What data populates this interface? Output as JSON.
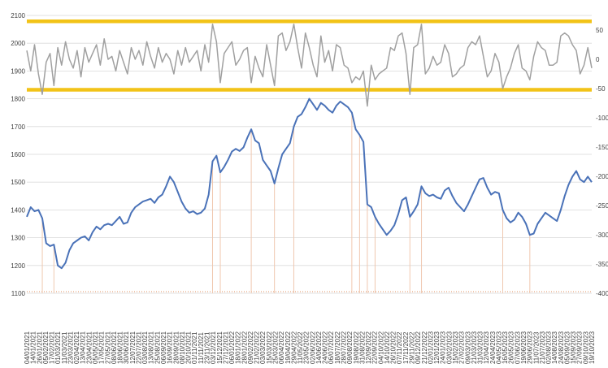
{
  "chart_data": {
    "type": "line",
    "title": "",
    "xlabel": "",
    "ylabel": "",
    "grid": true,
    "legend": "none",
    "colors": {
      "primary_line": "#4a72b8",
      "secondary_line": "#a0a0a0",
      "bands": "#f2c318",
      "bars": "#f0c8b0",
      "grid": "#d9d9d9"
    },
    "left_axis": {
      "ylim": [
        1100,
        2100
      ],
      "ticks": [
        "1100",
        "1200",
        "1300",
        "1400",
        "1500",
        "1600",
        "1700",
        "1800",
        "1900",
        "2000",
        "2100"
      ]
    },
    "right_axis": {
      "ylim": [
        -400,
        75
      ],
      "ticks": [
        "50",
        "0",
        "-50",
        "-100",
        "-150",
        "-200",
        "-250",
        "-300",
        "-350",
        "-400"
      ]
    },
    "reference_lines_right": [
      65,
      -52
    ],
    "date_labels": [
      "04/01/2021",
      "14/01/2021",
      "26/01/2021",
      "05/02/2021",
      "17/02/2021",
      "01/03/2021",
      "11/03/2021",
      "23/03/2021",
      "02/04/2021",
      "13/04/2021",
      "23/04/2021",
      "05/05/2021",
      "17/05/2021",
      "27/05/2021",
      "08/06/2021",
      "18/06/2021",
      "30/06/2021",
      "12/07/2021",
      "22/07/2021",
      "03/08/2021",
      "13/08/2021",
      "25/08/2021",
      "06/09/2021",
      "16/09/2021",
      "28/09/2021",
      "08/10/2021",
      "20/10/2021",
      "01/11/2021",
      "11/11/2021",
      "23/11/2021",
      "03/12/2021",
      "15/12/2021",
      "27/12/2021",
      "06/01/2022",
      "18/01/2022",
      "28/01/2022",
      "09/02/2022",
      "21/02/2022",
      "03/03/2022",
      "15/03/2022",
      "25/03/2022",
      "06/04/2022",
      "19/04/2022",
      "29/04/2022",
      "11/05/2022",
      "23/05/2022",
      "02/06/2022",
      "14/06/2022",
      "24/06/2022",
      "06/07/2022",
      "18/07/2022",
      "28/07/2022",
      "09/08/2022",
      "19/08/2022",
      "31/08/2022",
      "12/09/2022",
      "22/09/2022",
      "04/10/2022",
      "14/10/2022",
      "26/10/2022",
      "07/11/2022",
      "17/11/2022",
      "29/11/2022",
      "09/12/2022",
      "21/12/2022",
      "02/01/2023",
      "12/01/2023",
      "24/01/2023",
      "03/02/2023",
      "15/02/2023",
      "27/02/2023",
      "09/03/2023",
      "21/03/2023",
      "31/03/2023",
      "12/04/2023",
      "24/04/2023",
      "04/05/2023",
      "16/05/2023",
      "26/05/2023",
      "07/06/2023",
      "19/06/2023",
      "29/06/2023",
      "11/07/2023",
      "21/07/2023",
      "02/08/2023",
      "14/08/2023",
      "24/08/2023",
      "05/09/2023",
      "15/09/2023",
      "27/09/2023",
      "09/10/2023",
      "19/10/2023"
    ],
    "series": [
      {
        "axis": "left",
        "color": "#4a72b8",
        "values": [
          1375,
          1410,
          1395,
          1400,
          1370,
          1280,
          1270,
          1275,
          1200,
          1190,
          1210,
          1255,
          1280,
          1290,
          1300,
          1305,
          1290,
          1320,
          1340,
          1330,
          1345,
          1350,
          1345,
          1360,
          1375,
          1350,
          1355,
          1390,
          1410,
          1420,
          1430,
          1435,
          1440,
          1425,
          1445,
          1455,
          1485,
          1520,
          1500,
          1465,
          1430,
          1405,
          1390,
          1395,
          1385,
          1390,
          1405,
          1455,
          1575,
          1595,
          1535,
          1555,
          1580,
          1610,
          1620,
          1612,
          1625,
          1660,
          1690,
          1650,
          1640,
          1580,
          1560,
          1540,
          1495,
          1550,
          1600,
          1620,
          1640,
          1700,
          1735,
          1745,
          1770,
          1800,
          1780,
          1760,
          1785,
          1775,
          1760,
          1750,
          1775,
          1790,
          1780,
          1770,
          1750,
          1690,
          1670,
          1645,
          1420,
          1410,
          1375,
          1350,
          1330,
          1310,
          1325,
          1345,
          1385,
          1435,
          1445,
          1375,
          1395,
          1420,
          1485,
          1460,
          1450,
          1455,
          1445,
          1440,
          1470,
          1480,
          1450,
          1425,
          1410,
          1395,
          1420,
          1450,
          1480,
          1510,
          1515,
          1480,
          1455,
          1465,
          1460,
          1400,
          1370,
          1355,
          1365,
          1390,
          1375,
          1350,
          1310,
          1315,
          1350,
          1370,
          1390,
          1380,
          1370,
          1360,
          1400,
          1450,
          1490,
          1520,
          1540,
          1510,
          1500,
          1520,
          1500
        ]
      },
      {
        "axis": "right",
        "color": "#a0a0a0",
        "values": [
          15,
          -20,
          25,
          -25,
          -60,
          -5,
          10,
          -45,
          20,
          -10,
          30,
          0,
          -15,
          15,
          -30,
          20,
          -5,
          10,
          25,
          -10,
          35,
          0,
          5,
          -20,
          15,
          -5,
          -25,
          20,
          0,
          15,
          -10,
          30,
          5,
          -15,
          20,
          -5,
          10,
          0,
          -25,
          15,
          -10,
          20,
          -5,
          5,
          15,
          -20,
          25,
          -5,
          60,
          30,
          -40,
          10,
          20,
          30,
          -10,
          0,
          15,
          20,
          -40,
          5,
          -15,
          -30,
          25,
          -10,
          -45,
          40,
          45,
          15,
          30,
          60,
          20,
          -15,
          45,
          20,
          -10,
          -30,
          40,
          -5,
          15,
          -20,
          25,
          20,
          -10,
          -15,
          -40,
          -30,
          -35,
          -20,
          -80,
          -10,
          -35,
          -25,
          -20,
          -15,
          20,
          15,
          40,
          45,
          10,
          -60,
          20,
          25,
          60,
          -25,
          -15,
          5,
          -10,
          -5,
          25,
          10,
          -30,
          -25,
          -15,
          -10,
          20,
          30,
          25,
          40,
          5,
          -30,
          -20,
          10,
          -5,
          -50,
          -30,
          -15,
          10,
          25,
          -15,
          -20,
          -35,
          5,
          30,
          20,
          15,
          -10,
          -10,
          -5,
          40,
          45,
          40,
          25,
          15,
          -25,
          -10,
          20,
          -15
        ]
      }
    ]
  }
}
